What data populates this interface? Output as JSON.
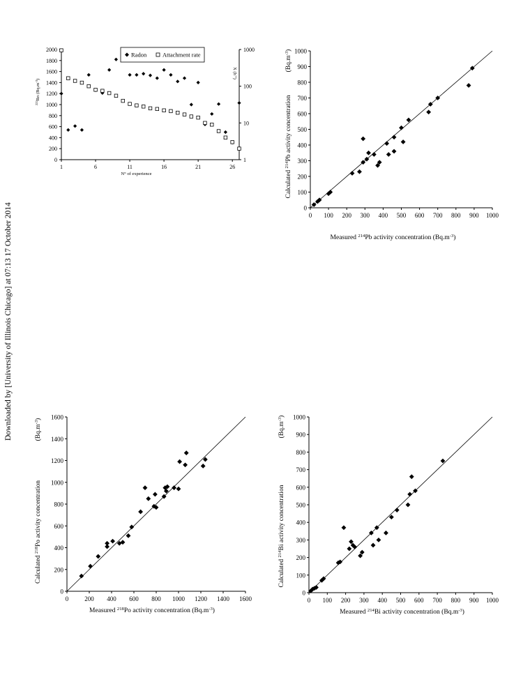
{
  "sidebar_note": "Downloaded by [University of Illinois Chicago] at 07:13 17 October 2014",
  "chart_data": [
    {
      "type": "scatter",
      "title": "",
      "xlabel": "N° of experience",
      "ylabel": "222Rn (Bq.m-3)",
      "ylabel_right": "X (h-1)",
      "xticks": [
        "1",
        "6",
        "11",
        "16",
        "21",
        "26"
      ],
      "yticks": [
        "0",
        "200",
        "400",
        "600",
        "800",
        "1000",
        "1200",
        "1400",
        "1600",
        "1800",
        "2000"
      ],
      "yticks_right": [
        "1",
        "10",
        "100",
        "1000"
      ],
      "xlim": [
        1,
        27
      ],
      "ylim": [
        0,
        2000
      ],
      "ylim_right": [
        1,
        1000
      ],
      "y_right_scale": "log",
      "legend_position": "top-center",
      "series": [
        {
          "name": "Radon",
          "marker": "diamond",
          "x": [
            1,
            2,
            3,
            4,
            5,
            6,
            7,
            8,
            9,
            11,
            12,
            13,
            14,
            15,
            16,
            17,
            18,
            19,
            20,
            21,
            22,
            23,
            24,
            25,
            26,
            27
          ],
          "y": [
            1200,
            540,
            610,
            540,
            1540,
            1260,
            1210,
            1630,
            1820,
            1540,
            1540,
            1560,
            1530,
            1480,
            1630,
            1540,
            1420,
            1480,
            1000,
            1400,
            640,
            830,
            1010,
            500,
            310,
            1030
          ]
        },
        {
          "name": "Attachment rate",
          "marker": "square",
          "axis": "right",
          "x": [
            1,
            2,
            3,
            4,
            5,
            6,
            7,
            8,
            9,
            10,
            11,
            12,
            13,
            14,
            15,
            16,
            17,
            18,
            19,
            20,
            21,
            22,
            23,
            24,
            25,
            26,
            27
          ],
          "y": [
            950,
            165,
            140,
            125,
            100,
            80,
            75,
            65,
            55,
            40,
            33,
            30,
            28,
            25,
            24,
            22,
            21,
            19,
            17,
            15,
            14,
            10,
            9,
            6,
            4,
            3,
            2
          ]
        }
      ]
    },
    {
      "type": "scatter",
      "title": "",
      "xlabel": "Measured 214Pb activity concentration (Bq.m-3)",
      "ylabel": "Calculated 214Pb activity concentration (Bq.m-3)",
      "xticks": [
        "0",
        "100",
        "200",
        "300",
        "400",
        "500",
        "600",
        "700",
        "800",
        "900",
        "1000"
      ],
      "yticks": [
        "0",
        "100",
        "200",
        "300",
        "400",
        "500",
        "600",
        "700",
        "800",
        "900",
        "1000"
      ],
      "xlim": [
        0,
        1000
      ],
      "ylim": [
        0,
        1000
      ],
      "reference_line": "y = x",
      "points": [
        [
          20,
          20
        ],
        [
          40,
          40
        ],
        [
          50,
          50
        ],
        [
          100,
          90
        ],
        [
          110,
          100
        ],
        [
          230,
          220
        ],
        [
          270,
          230
        ],
        [
          290,
          290
        ],
        [
          290,
          440
        ],
        [
          310,
          310
        ],
        [
          320,
          350
        ],
        [
          350,
          340
        ],
        [
          370,
          270
        ],
        [
          380,
          290
        ],
        [
          420,
          410
        ],
        [
          430,
          340
        ],
        [
          460,
          360
        ],
        [
          460,
          450
        ],
        [
          500,
          510
        ],
        [
          510,
          420
        ],
        [
          540,
          560
        ],
        [
          650,
          610
        ],
        [
          660,
          660
        ],
        [
          700,
          700
        ],
        [
          870,
          780
        ],
        [
          890,
          890
        ]
      ]
    },
    {
      "type": "scatter",
      "title": "",
      "xlabel": "Measured 218Po activity concentration (Bq.m-3)",
      "ylabel": "Calculated 218Po activity concentration (Bq.m-3)",
      "xticks": [
        "0",
        "200",
        "400",
        "600",
        "800",
        "1000",
        "1200",
        "1400",
        "1600"
      ],
      "yticks": [
        "0",
        "200",
        "400",
        "600",
        "800",
        "1000",
        "1200",
        "1400",
        "1600"
      ],
      "xlim": [
        0,
        1600
      ],
      "ylim": [
        0,
        1600
      ],
      "reference_line": "y = x",
      "points": [
        [
          130,
          140
        ],
        [
          210,
          230
        ],
        [
          280,
          320
        ],
        [
          360,
          410
        ],
        [
          360,
          440
        ],
        [
          410,
          460
        ],
        [
          470,
          440
        ],
        [
          500,
          450
        ],
        [
          550,
          510
        ],
        [
          580,
          590
        ],
        [
          660,
          730
        ],
        [
          700,
          950
        ],
        [
          730,
          850
        ],
        [
          780,
          780
        ],
        [
          790,
          890
        ],
        [
          800,
          770
        ],
        [
          870,
          870
        ],
        [
          880,
          950
        ],
        [
          890,
          920
        ],
        [
          900,
          960
        ],
        [
          960,
          950
        ],
        [
          1000,
          940
        ],
        [
          1010,
          1190
        ],
        [
          1060,
          1160
        ],
        [
          1070,
          1270
        ],
        [
          1220,
          1150
        ],
        [
          1240,
          1210
        ]
      ]
    },
    {
      "type": "scatter",
      "title": "",
      "xlabel": "Measured 214Bi activity concentration (Bq.m-3)",
      "ylabel": "Calculated 214Bi activity concentration (Bq.m-3)",
      "xticks": [
        "0",
        "100",
        "200",
        "300",
        "400",
        "500",
        "600",
        "700",
        "800",
        "900",
        "1000"
      ],
      "yticks": [
        "0",
        "100",
        "200",
        "300",
        "400",
        "500",
        "600",
        "700",
        "800",
        "900",
        "1000"
      ],
      "xlim": [
        0,
        1000
      ],
      "ylim": [
        0,
        1000
      ],
      "reference_line": "y = x",
      "points": [
        [
          10,
          10
        ],
        [
          20,
          20
        ],
        [
          30,
          25
        ],
        [
          40,
          30
        ],
        [
          70,
          70
        ],
        [
          80,
          80
        ],
        [
          160,
          170
        ],
        [
          170,
          175
        ],
        [
          190,
          370
        ],
        [
          220,
          250
        ],
        [
          230,
          290
        ],
        [
          240,
          270
        ],
        [
          250,
          260
        ],
        [
          280,
          210
        ],
        [
          290,
          230
        ],
        [
          340,
          340
        ],
        [
          350,
          270
        ],
        [
          370,
          370
        ],
        [
          380,
          300
        ],
        [
          420,
          340
        ],
        [
          450,
          430
        ],
        [
          480,
          470
        ],
        [
          540,
          500
        ],
        [
          550,
          560
        ],
        [
          560,
          660
        ],
        [
          580,
          580
        ],
        [
          730,
          750
        ]
      ]
    }
  ]
}
